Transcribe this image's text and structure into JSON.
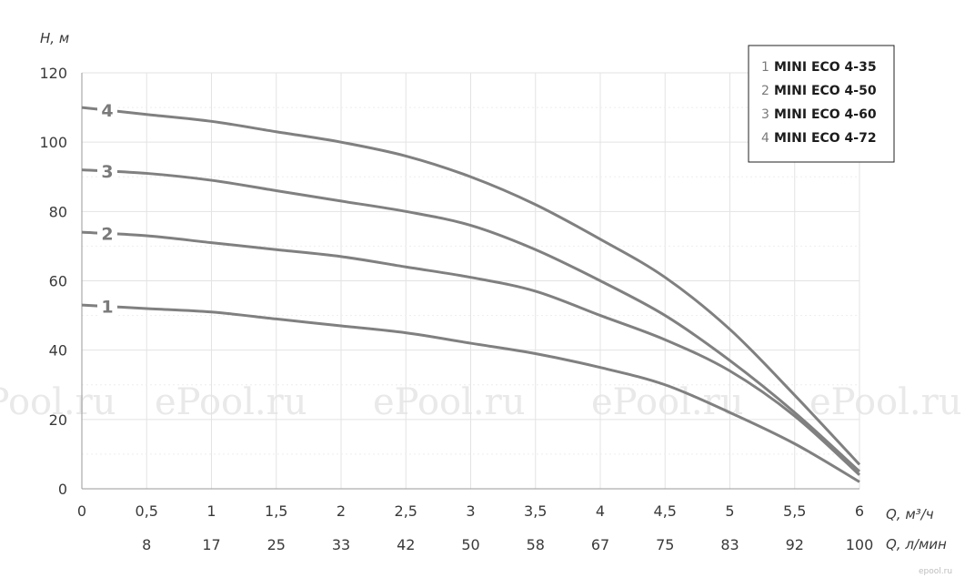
{
  "chart_data": {
    "type": "line",
    "ylabel": "H, м",
    "xlabel": "Q, м³/ч",
    "x2label": "Q, л/мин",
    "xlim": [
      0,
      6
    ],
    "ylim": [
      0,
      120
    ],
    "grid": true,
    "legend_position": "top-right",
    "x_ticks": [
      "0",
      "0,5",
      "1",
      "1,5",
      "2",
      "2,5",
      "3",
      "3,5",
      "4",
      "4,5",
      "5",
      "5,5",
      "6"
    ],
    "x2_ticks": [
      "",
      "8",
      "17",
      "25",
      "33",
      "42",
      "50",
      "58",
      "67",
      "75",
      "83",
      "92",
      "100"
    ],
    "y_ticks": [
      "0",
      "20",
      "40",
      "60",
      "80",
      "100",
      "120"
    ],
    "series": [
      {
        "label": "1",
        "name": "MINI ECO 4-35",
        "x": [
          0,
          0.5,
          1,
          1.5,
          2,
          2.5,
          3,
          3.5,
          4,
          4.5,
          5,
          5.5,
          6
        ],
        "y": [
          53,
          52,
          51,
          49,
          47,
          45,
          42,
          39,
          35,
          30,
          22,
          13,
          2
        ]
      },
      {
        "label": "2",
        "name": "MINI ECO 4-50",
        "x": [
          0,
          0.5,
          1,
          1.5,
          2,
          2.5,
          3,
          3.5,
          4,
          4.5,
          5,
          5.5,
          6
        ],
        "y": [
          74,
          73,
          71,
          69,
          67,
          64,
          61,
          57,
          50,
          43,
          34,
          21,
          4
        ]
      },
      {
        "label": "3",
        "name": "MINI ECO 4-60",
        "x": [
          0,
          0.5,
          1,
          1.5,
          2,
          2.5,
          3,
          3.5,
          4,
          4.5,
          5,
          5.5,
          6
        ],
        "y": [
          92,
          91,
          89,
          86,
          83,
          80,
          76,
          69,
          60,
          50,
          37,
          22,
          5
        ]
      },
      {
        "label": "4",
        "name": "MINI ECO 4-72",
        "x": [
          0,
          0.5,
          1,
          1.5,
          2,
          2.5,
          3,
          3.5,
          4,
          4.5,
          5,
          5.5,
          6
        ],
        "y": [
          110,
          108,
          106,
          103,
          100,
          96,
          90,
          82,
          72,
          61,
          46,
          27,
          7
        ]
      }
    ],
    "watermark": "ePool.ru",
    "corner_mark": "epool.ru",
    "colors": {
      "curve": "#808080",
      "grid": "#e3e3e3",
      "axis": "#9a9a9a",
      "text": "#3a3a3a"
    }
  }
}
